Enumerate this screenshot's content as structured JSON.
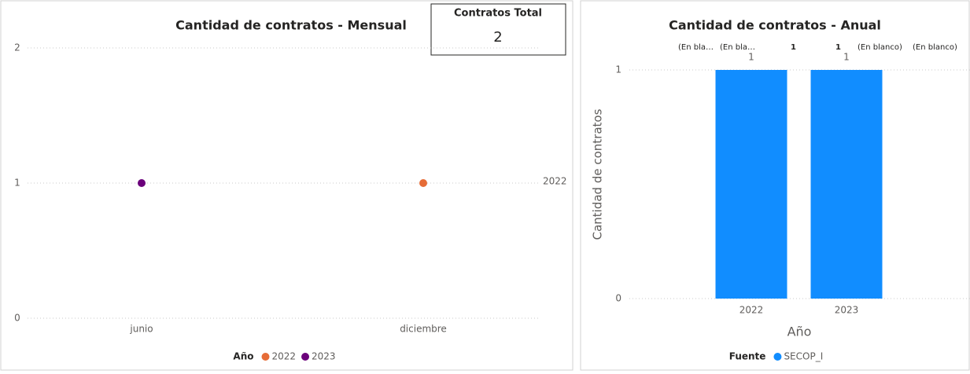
{
  "chart_data": [
    {
      "type": "line",
      "title": "Cantidad de contratos - Mensual",
      "categories": [
        "junio",
        "diciembre"
      ],
      "series": [
        {
          "name": "2022",
          "color": "#e66c37",
          "values": [
            null,
            1
          ]
        },
        {
          "name": "2023",
          "color": "#6b007b",
          "values": [
            1,
            null
          ]
        }
      ],
      "ylim": [
        0,
        2
      ],
      "yticks": [
        0,
        1,
        2
      ],
      "grid": true,
      "legend_title": "Año",
      "legend": "bottom"
    },
    {
      "type": "bar",
      "title": "Cantidad de contratos - Anual",
      "categories": [
        "2022",
        "2023"
      ],
      "series": [
        {
          "name": "SECOP_I",
          "color": "#118dff",
          "values": [
            1,
            1
          ]
        }
      ],
      "ylim": [
        0,
        1
      ],
      "yticks": [
        0,
        1
      ],
      "grid": true,
      "xlabel": "Año",
      "ylabel": "Cantidad de contratos",
      "legend_title": "Fuente",
      "legend": "bottom",
      "annotations": [
        "(En bla…",
        "(En bla…",
        "1",
        "1",
        "(En blanco)",
        "(En blanco)"
      ]
    }
  ],
  "card": {
    "title": "Contratos Total",
    "value": "2"
  }
}
